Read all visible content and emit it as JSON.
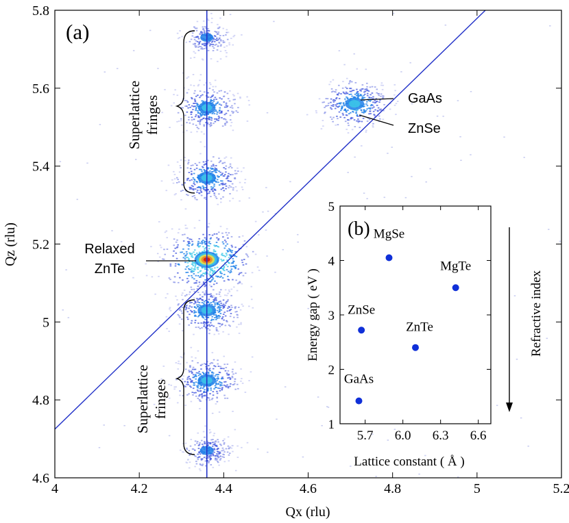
{
  "chart_data": [
    {
      "type": "heatmap",
      "panel_label": "(a)",
      "xlabel": "Qx (rlu)",
      "ylabel": "Qz (rlu)",
      "xlim": [
        4.0,
        5.2
      ],
      "ylim": [
        4.6,
        5.8
      ],
      "xticks": [
        "4",
        "4.2",
        "4.4",
        "4.6",
        "4.8",
        "5",
        "5.2"
      ],
      "yticks": [
        "4.6",
        "4.8",
        "5",
        "5.2",
        "5.4",
        "5.6",
        "5.8"
      ],
      "vertical_line_qx": 4.36,
      "diagonal_line": {
        "from": [
          4.0,
          4.725
        ],
        "to": [
          5.2,
          5.99
        ]
      },
      "peaks": [
        {
          "qx": 4.36,
          "qz": 5.16,
          "intensity": 1.0,
          "name": "Relaxed ZnTe"
        },
        {
          "qx": 4.36,
          "qz": 5.37,
          "intensity": 0.55
        },
        {
          "qx": 4.36,
          "qz": 5.55,
          "intensity": 0.5
        },
        {
          "qx": 4.36,
          "qz": 5.73,
          "intensity": 0.2
        },
        {
          "qx": 4.36,
          "qz": 5.03,
          "intensity": 0.55
        },
        {
          "qx": 4.36,
          "qz": 4.85,
          "intensity": 0.55
        },
        {
          "qx": 4.36,
          "qz": 4.67,
          "intensity": 0.25
        },
        {
          "qx": 4.71,
          "qz": 5.56,
          "intensity": 0.6,
          "name": "GaAs / ZnSe"
        }
      ],
      "annotations": {
        "superlattice_top": [
          "Superlattice",
          "fringes"
        ],
        "superlattice_bottom": [
          "Superlattice",
          "fringes"
        ],
        "relaxed": [
          "Relaxed",
          "ZnTe"
        ],
        "gaas": "GaAs",
        "znse": "ZnSe"
      }
    },
    {
      "type": "scatter",
      "panel_label": "(b)",
      "xlabel": "Lattice constant ( Å )",
      "ylabel": "Energy gap ( eV )",
      "xlim": [
        5.5,
        6.7
      ],
      "ylim": [
        1,
        5
      ],
      "xticks": [
        "5.7",
        "6.0",
        "6.3",
        "6.6"
      ],
      "yticks": [
        "1",
        "2",
        "3",
        "4",
        "5"
      ],
      "points": [
        {
          "label": "GaAs",
          "x": 5.65,
          "y": 1.42
        },
        {
          "label": "ZnSe",
          "x": 5.67,
          "y": 2.72
        },
        {
          "label": "MgSe",
          "x": 5.89,
          "y": 4.05
        },
        {
          "label": "ZnTe",
          "x": 6.1,
          "y": 2.4
        },
        {
          "label": "MgTe",
          "x": 6.42,
          "y": 3.5
        }
      ],
      "side_label": "Refractive index",
      "colors": {
        "points": "#1030d8"
      }
    }
  ],
  "colors": {
    "line": "#2030c8",
    "axis": "#000000"
  }
}
